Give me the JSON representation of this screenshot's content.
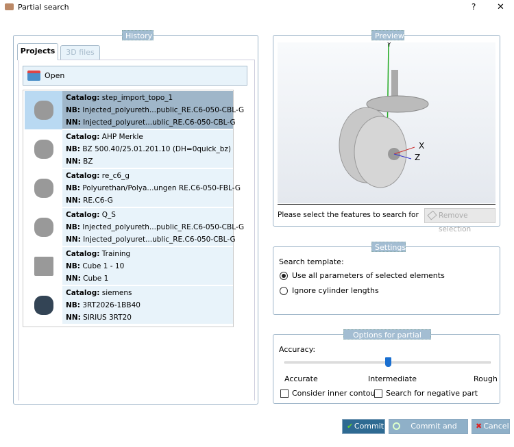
{
  "window": {
    "title": "Partial search",
    "help": "?",
    "close": "✕"
  },
  "history": {
    "legend": "History",
    "tabs": [
      {
        "label": "Projects",
        "active": true
      },
      {
        "label": "3D files",
        "active": false
      }
    ],
    "open_label": "Open",
    "items": [
      {
        "catalog": "step_import_topo_1",
        "nb": "Injected_polyureth...public_RE.C6-050-CBL-G",
        "nn": "Injected_polyuret...ublic_RE.C6-050-CBL-G",
        "selected": true,
        "icon": "caster-icon"
      },
      {
        "catalog": "AHP Merkle",
        "nb": "BZ 500.40/25.01.201.10 (DH=0quick_bz)",
        "nn": "BZ",
        "icon": "block-cylinder-icon"
      },
      {
        "catalog": "re_c6_g",
        "nb": "Polyurethan/Polya...ungen RE.C6-050-FBL-G",
        "nn": "RE.C6-G",
        "icon": "caster-icon"
      },
      {
        "catalog": "Q_S",
        "nb": "Injected_polyureth...public_RE.C6-050-CBL-G",
        "nn": "Injected_polyuret...ublic_RE.C6-050-CBL-G",
        "icon": "caster-icon"
      },
      {
        "catalog": "Training",
        "nb": "Cube 1 - 10",
        "nn": "Cube 1",
        "icon": "cube-icon"
      },
      {
        "catalog": "siemens",
        "nb": "3RT2026-1BB40",
        "nn": "SIRIUS 3RT20",
        "icon": "contactor-icon"
      }
    ],
    "labels": {
      "catalog": "Catalog:",
      "nb": "NB:",
      "nn": "NN:"
    }
  },
  "preview": {
    "legend": "Preview",
    "axes": {
      "y": "Y",
      "x": "X",
      "z": "Z"
    },
    "hint": "Please select the features to search for",
    "remove_label": "Remove selection"
  },
  "settings": {
    "legend": "Settings",
    "template_label": "Search template:",
    "options": [
      {
        "label": "Use all parameters of selected elements",
        "checked": true
      },
      {
        "label": "Ignore cylinder lengths",
        "checked": false
      }
    ]
  },
  "options": {
    "legend": "Options for partial search",
    "accuracy_label": "Accuracy:",
    "slider": {
      "ticks": [
        "Accurate",
        "Intermediate",
        "Rough"
      ],
      "value": "Intermediate",
      "fraction": 0.5
    },
    "checkboxes": [
      {
        "label": "Consider inner contours",
        "checked": false
      },
      {
        "label": "Search for negative part",
        "checked": false
      }
    ]
  },
  "buttons": {
    "commit": "Commit",
    "commit_search": "Commit and Search",
    "cancel": "Cancel"
  },
  "colors": {
    "accent": "#2e6a92",
    "selected_row": "#9fb6c9",
    "row": "#e8f3fa",
    "legend": "#a3bdd2"
  }
}
